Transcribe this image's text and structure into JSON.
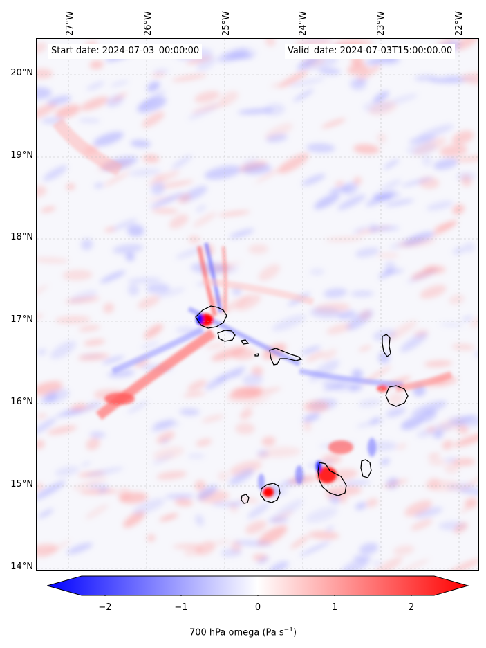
{
  "map": {
    "start_date": "Start date: 2024-07-03_00:00:00",
    "valid_date": "Valid_date: 2024-07-03T15:00:00.00",
    "lon_labels": [
      "27°W",
      "26°W",
      "25°W",
      "24°W",
      "23°W",
      "22°W"
    ],
    "lat_labels": [
      "20°N",
      "19°N",
      "18°N",
      "17°N",
      "16°N",
      "15°N",
      "14°N"
    ],
    "field": "700 hPa omega",
    "colors": {
      "negative": "#0000ff",
      "neutral": "#ffffff",
      "positive": "#ff0000",
      "coast": "#000000"
    }
  },
  "colorbar": {
    "ticks": [
      "−2",
      "−1",
      "0",
      "1",
      "2"
    ],
    "label": "700 hPa omega (Pa s",
    "label_sup": "−1",
    "label_close": ")"
  }
}
